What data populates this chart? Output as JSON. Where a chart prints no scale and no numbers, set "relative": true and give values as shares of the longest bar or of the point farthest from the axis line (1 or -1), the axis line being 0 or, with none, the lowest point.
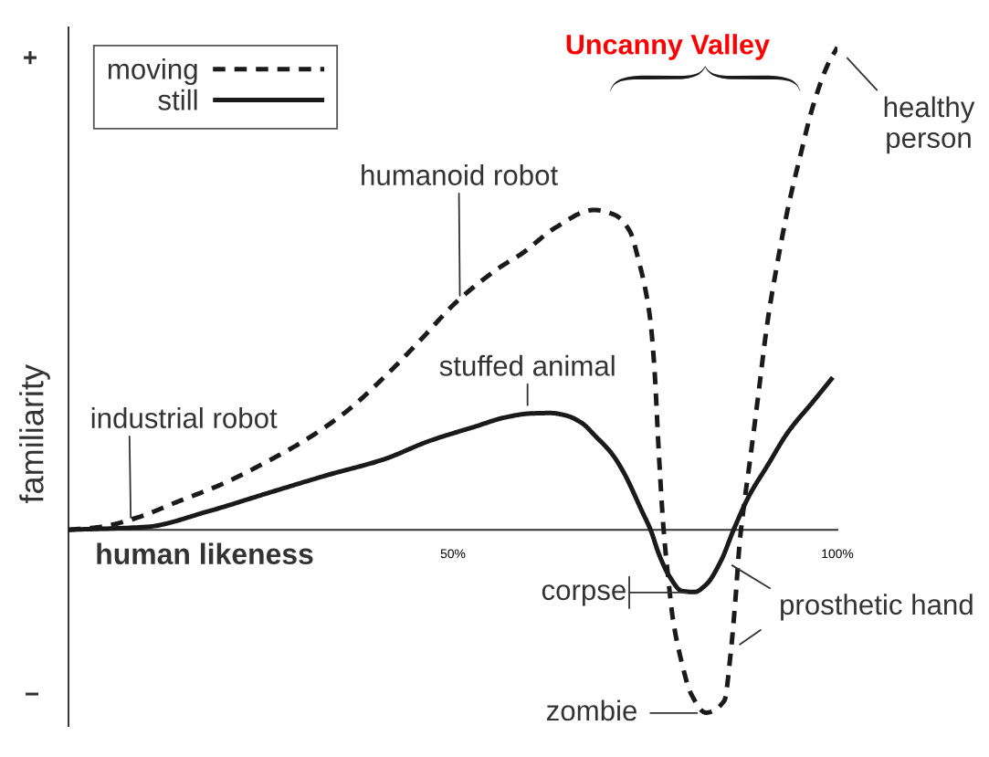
{
  "chart_data": {
    "type": "line",
    "relative": true,
    "xlabel": "human likeness",
    "ylabel": "familiarity",
    "xlim": [
      0,
      100
    ],
    "xticks": [
      {
        "value": 50,
        "label": "50%"
      },
      {
        "value": 100,
        "label": "100%"
      }
    ],
    "legend": "top left",
    "series": [
      {
        "name": "moving",
        "color": "#1a1a1a",
        "line_style": "dashed",
        "x": [
          0,
          4.2,
          8.9,
          14.0,
          20.0,
          25.9,
          31.1,
          36.2,
          41.8,
          45.7,
          50.5,
          56.1,
          59.1,
          63.2,
          68.3,
          71.0,
          73.0,
          74.2,
          75.1,
          75.7,
          76.2,
          76.8,
          77.4,
          78.0,
          78.6,
          79.6,
          81.0,
          82.9,
          85.3,
          86.1,
          86.7,
          87.3,
          87.9,
          88.7,
          89.7,
          90.9,
          92.0,
          93.6,
          95.2,
          96.8,
          98.8,
          100.0
        ],
        "values": [
          0,
          0.006,
          0.025,
          0.057,
          0.095,
          0.142,
          0.189,
          0.246,
          0.328,
          0.392,
          0.473,
          0.544,
          0.574,
          0.625,
          0.663,
          0.653,
          0.619,
          0.555,
          0.492,
          0.43,
          0.335,
          0.152,
          0,
          -0.1,
          -0.184,
          -0.265,
          -0.341,
          -0.379,
          -0.354,
          -0.259,
          -0.152,
          -0.025,
          0.057,
          0.152,
          0.278,
          0.43,
          0.536,
          0.669,
          0.777,
          0.877,
          0.966,
          1.0
        ]
      },
      {
        "name": "still",
        "color": "#1a1a1a",
        "line_style": "solid",
        "x": [
          0,
          10.1,
          18.1,
          25.9,
          33.8,
          41.0,
          46.9,
          52.9,
          56.8,
          60.0,
          62.7,
          64.7,
          66.7,
          68.6,
          70.7,
          72.2,
          74.6,
          75.7,
          76.8,
          78.1,
          79.8,
          81.4,
          82.9,
          84.9,
          86.5,
          88.5,
          90.9,
          93.6,
          96.8,
          99.4
        ],
        "values": [
          0,
          0.006,
          0.038,
          0.076,
          0.114,
          0.146,
          0.184,
          0.214,
          0.233,
          0.241,
          0.242,
          0.237,
          0.222,
          0.193,
          0.157,
          0.119,
          0.038,
          0,
          -0.051,
          -0.095,
          -0.127,
          -0.129,
          -0.114,
          -0.063,
          0,
          0.07,
          0.133,
          0.203,
          0.265,
          0.316
        ]
      }
    ],
    "annotations": [
      {
        "text": "industrial robot",
        "x": 8.1,
        "y": 0.02
      },
      {
        "text": "humanoid robot",
        "x": 50.9,
        "y": 0.48
      },
      {
        "text": "stuffed animal",
        "x": 59.7,
        "y": 0.24
      },
      {
        "text": "corpse",
        "x": 81.4,
        "y": -0.13
      },
      {
        "text": "zombie",
        "x": 82.9,
        "y": -0.38
      },
      {
        "text": "prosthetic hand",
        "x": 84.9,
        "y": -0.06
      },
      {
        "text": "healthy\nperson",
        "x": 100.0,
        "y": 1.0
      },
      "Uncanny Valley",
      "+",
      "−"
    ]
  }
}
